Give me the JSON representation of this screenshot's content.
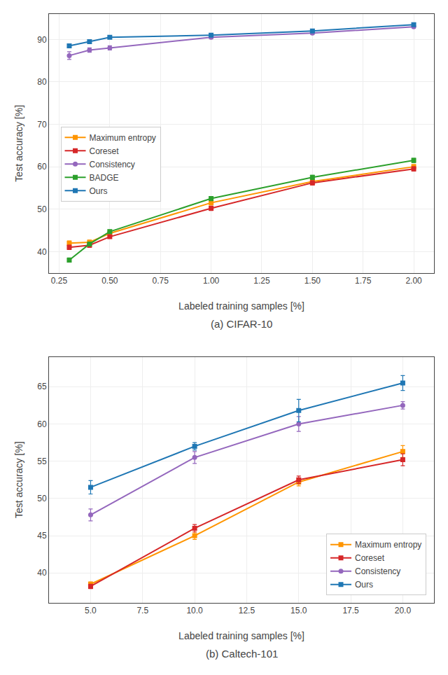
{
  "chart_data": [
    {
      "type": "line",
      "title": "(a) CIFAR-10",
      "xlabel": "Labeled training samples [%]",
      "ylabel": "Test accuracy [%]",
      "x": [
        0.3,
        0.4,
        0.5,
        1.0,
        1.5,
        2.0
      ],
      "xlim": [
        0.2,
        2.1
      ],
      "ylim": [
        35,
        96
      ],
      "xticks": [
        0.25,
        {
          "value": 0.5,
          "label": "0.50"
        },
        0.75,
        {
          "value": 1.0,
          "label": "1.00"
        },
        1.25,
        {
          "value": 1.5,
          "label": "1.50"
        },
        1.75,
        {
          "value": 2.0,
          "label": "2.00"
        }
      ],
      "yticks": [
        40,
        50,
        60,
        70,
        80,
        90
      ],
      "grid": true,
      "legend": "center left",
      "series": [
        {
          "name": "Maximum entropy",
          "color": "#ff9500",
          "marker": "square",
          "values": [
            42.0,
            42.2,
            44.3,
            51.5,
            56.5,
            60.0
          ],
          "yerr": [
            0.5,
            0.5,
            0.4,
            0.5,
            0.5,
            0.5
          ]
        },
        {
          "name": "Coreset",
          "color": "#d62728",
          "marker": "square",
          "values": [
            41.0,
            41.5,
            43.5,
            50.2,
            56.2,
            59.5
          ],
          "yerr": [
            0.5,
            0.5,
            0.4,
            0.5,
            0.5,
            0.5
          ]
        },
        {
          "name": "Consistency",
          "color": "#9467bd",
          "marker": "circle",
          "values": [
            86.2,
            87.5,
            88.0,
            90.5,
            91.5,
            93.0
          ],
          "yerr": [
            0.9,
            0.5,
            0.5,
            0.3,
            0.3,
            0.3
          ]
        },
        {
          "name": "BADGE",
          "color": "#2ca02c",
          "marker": "square",
          "values": [
            38.0,
            41.8,
            44.7,
            52.5,
            57.5,
            61.5
          ],
          "yerr": [
            0.5,
            0.4,
            0.4,
            0.5,
            0.5,
            0.5
          ]
        },
        {
          "name": "Ours",
          "color": "#1f77b4",
          "marker": "square",
          "values": [
            88.5,
            89.5,
            90.5,
            91.0,
            92.0,
            93.5
          ],
          "yerr": [
            0.4,
            0.3,
            0.3,
            0.3,
            0.3,
            0.3
          ]
        }
      ]
    },
    {
      "type": "line",
      "title": "(b) Caltech-101",
      "xlabel": "Labeled training samples [%]",
      "ylabel": "Test accuracy [%]",
      "x": [
        5.0,
        10.0,
        15.0,
        20.0
      ],
      "xlim": [
        3.0,
        21.5
      ],
      "ylim": [
        36,
        69
      ],
      "xticks": [
        {
          "value": 5.0,
          "label": "5.0"
        },
        7.5,
        {
          "value": 10.0,
          "label": "10.0"
        },
        12.5,
        {
          "value": 15.0,
          "label": "15.0"
        },
        17.5,
        {
          "value": 20.0,
          "label": "20.0"
        }
      ],
      "yticks": [
        40,
        45,
        50,
        55,
        60,
        65
      ],
      "grid": true,
      "legend": "lower right",
      "series": [
        {
          "name": "Maximum entropy",
          "color": "#ff9500",
          "marker": "square",
          "values": [
            38.5,
            45.0,
            52.2,
            56.3
          ],
          "yerr": [
            0.3,
            0.5,
            0.5,
            0.8
          ]
        },
        {
          "name": "Coreset",
          "color": "#d62728",
          "marker": "square",
          "values": [
            38.2,
            46.0,
            52.5,
            55.2
          ],
          "yerr": [
            0.3,
            0.5,
            0.5,
            0.8
          ]
        },
        {
          "name": "Consistency",
          "color": "#9467bd",
          "marker": "circle",
          "values": [
            47.8,
            55.5,
            60.0,
            62.5
          ],
          "yerr": [
            0.8,
            0.8,
            1.0,
            0.5
          ]
        },
        {
          "name": "Ours",
          "color": "#1f77b4",
          "marker": "square",
          "values": [
            51.5,
            57.0,
            61.8,
            65.5
          ],
          "yerr": [
            0.9,
            0.5,
            1.5,
            1.0
          ]
        }
      ]
    }
  ]
}
